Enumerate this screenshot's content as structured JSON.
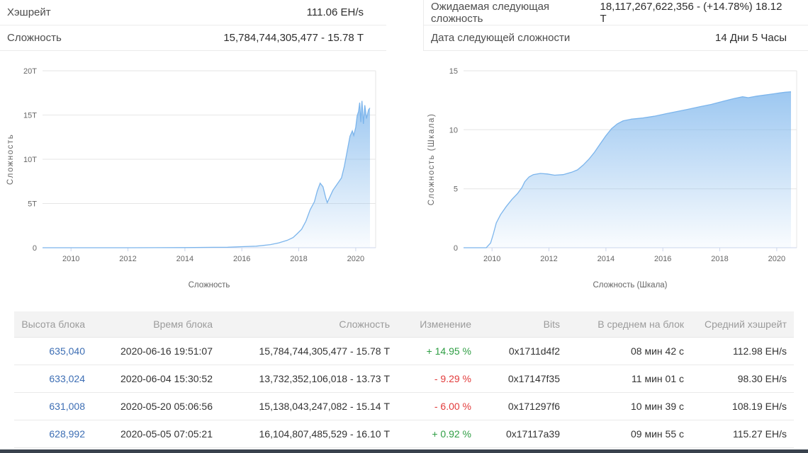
{
  "summary": {
    "left": [
      {
        "label": "Хэшрейт",
        "value": "111.06 EH/s"
      },
      {
        "label": "Сложность",
        "value": "15,784,744,305,477 - 15.78 Т"
      }
    ],
    "right": [
      {
        "label": "Ожидаемая следующая сложность",
        "value": "18,117,267,622,356 - (+14.78%) 18.12 Т"
      },
      {
        "label": "Дата следующей сложности",
        "value": "14 Дни 5 Часы"
      }
    ]
  },
  "chart_data": [
    {
      "type": "area",
      "title": "",
      "xlabel": "Сложность",
      "ylabel": "Сложность",
      "xlim": [
        2009,
        2020.7
      ],
      "ylim": [
        0,
        20
      ],
      "xticks": [
        2010,
        2012,
        2014,
        2016,
        2018,
        2020
      ],
      "xtick_labels": [
        "2010",
        "2012",
        "2014",
        "2016",
        "2018",
        "2020"
      ],
      "yticks": [
        0,
        5,
        10,
        15,
        20
      ],
      "ytick_labels": [
        "0",
        "5Т",
        "10Т",
        "15Т",
        "20Т"
      ],
      "unit": "trillions (Т)",
      "color": "#7cb5ec",
      "points": [
        [
          2009.0,
          0.001
        ],
        [
          2010,
          0.001
        ],
        [
          2011,
          0.001
        ],
        [
          2012,
          0.002
        ],
        [
          2013,
          0.005
        ],
        [
          2014,
          0.02
        ],
        [
          2015,
          0.05
        ],
        [
          2015.5,
          0.06
        ],
        [
          2016,
          0.12
        ],
        [
          2016.5,
          0.18
        ],
        [
          2017,
          0.35
        ],
        [
          2017.3,
          0.55
        ],
        [
          2017.6,
          0.85
        ],
        [
          2017.8,
          1.15
        ],
        [
          2017.95,
          1.6
        ],
        [
          2018.1,
          2.1
        ],
        [
          2018.25,
          3.0
        ],
        [
          2018.4,
          4.3
        ],
        [
          2018.55,
          5.2
        ],
        [
          2018.65,
          6.4
        ],
        [
          2018.75,
          7.3
        ],
        [
          2018.85,
          6.9
        ],
        [
          2018.95,
          5.6
        ],
        [
          2019.0,
          5.1
        ],
        [
          2019.1,
          5.8
        ],
        [
          2019.2,
          6.5
        ],
        [
          2019.35,
          7.2
        ],
        [
          2019.5,
          7.9
        ],
        [
          2019.6,
          9.2
        ],
        [
          2019.7,
          10.9
        ],
        [
          2019.8,
          12.6
        ],
        [
          2019.88,
          13.2
        ],
        [
          2019.93,
          12.7
        ],
        [
          2020.0,
          13.6
        ],
        [
          2020.05,
          14.9
        ],
        [
          2020.1,
          15.4
        ],
        [
          2020.14,
          16.4
        ],
        [
          2020.18,
          14.2
        ],
        [
          2020.22,
          16.6
        ],
        [
          2020.27,
          14.0
        ],
        [
          2020.32,
          16.1
        ],
        [
          2020.38,
          14.6
        ],
        [
          2020.45,
          15.6
        ],
        [
          2020.5,
          15.8
        ]
      ]
    },
    {
      "type": "area",
      "title": "",
      "xlabel": "Сложность (Шкала)",
      "ylabel": "Сложность (Шкала)",
      "xlim": [
        2009,
        2020.7
      ],
      "ylim": [
        0,
        15
      ],
      "xticks": [
        2010,
        2012,
        2014,
        2016,
        2018,
        2020
      ],
      "xtick_labels": [
        "2010",
        "2012",
        "2014",
        "2016",
        "2018",
        "2020"
      ],
      "yticks": [
        0,
        5,
        10,
        15
      ],
      "ytick_labels": [
        "0",
        "5",
        "10",
        "15"
      ],
      "unit": "log scale",
      "color": "#7cb5ec",
      "points": [
        [
          2009.0,
          0
        ],
        [
          2009.8,
          0
        ],
        [
          2009.95,
          0.4
        ],
        [
          2010.05,
          1.2
        ],
        [
          2010.15,
          2.1
        ],
        [
          2010.3,
          2.8
        ],
        [
          2010.5,
          3.5
        ],
        [
          2010.7,
          4.1
        ],
        [
          2010.9,
          4.6
        ],
        [
          2011.05,
          5.1
        ],
        [
          2011.15,
          5.6
        ],
        [
          2011.3,
          6.0
        ],
        [
          2011.45,
          6.2
        ],
        [
          2011.7,
          6.3
        ],
        [
          2011.95,
          6.25
        ],
        [
          2012.2,
          6.15
        ],
        [
          2012.5,
          6.2
        ],
        [
          2012.8,
          6.4
        ],
        [
          2013.0,
          6.6
        ],
        [
          2013.2,
          7.0
        ],
        [
          2013.4,
          7.5
        ],
        [
          2013.6,
          8.1
        ],
        [
          2013.8,
          8.8
        ],
        [
          2014.0,
          9.5
        ],
        [
          2014.2,
          10.1
        ],
        [
          2014.4,
          10.5
        ],
        [
          2014.6,
          10.75
        ],
        [
          2014.9,
          10.9
        ],
        [
          2015.3,
          11.0
        ],
        [
          2015.7,
          11.15
        ],
        [
          2016.1,
          11.35
        ],
        [
          2016.5,
          11.55
        ],
        [
          2016.9,
          11.75
        ],
        [
          2017.3,
          11.95
        ],
        [
          2017.7,
          12.15
        ],
        [
          2018.1,
          12.4
        ],
        [
          2018.5,
          12.65
        ],
        [
          2018.8,
          12.8
        ],
        [
          2019.0,
          12.72
        ],
        [
          2019.3,
          12.85
        ],
        [
          2019.6,
          12.95
        ],
        [
          2019.9,
          13.05
        ],
        [
          2020.1,
          13.12
        ],
        [
          2020.3,
          13.18
        ],
        [
          2020.5,
          13.22
        ]
      ]
    }
  ],
  "table": {
    "headers": [
      "Высота блока",
      "Время блока",
      "Сложность",
      "Изменение",
      "Bits",
      "В среднем на блок",
      "Средний хэшрейт"
    ],
    "rows": [
      {
        "height": "635,040",
        "time": "2020-06-16 19:51:07",
        "difficulty": "15,784,744,305,477 - 15.78 Т",
        "change": "+ 14.95 %",
        "change_dir": "up",
        "bits": "0x1711d4f2",
        "avg_block_time": "08 мин 42 с",
        "avg_hashrate": "112.98 EH/s"
      },
      {
        "height": "633,024",
        "time": "2020-06-04 15:30:52",
        "difficulty": "13,732,352,106,018 - 13.73 Т",
        "change": "- 9.29 %",
        "change_dir": "down",
        "bits": "0x17147f35",
        "avg_block_time": "11 мин 01 с",
        "avg_hashrate": "98.30 EH/s"
      },
      {
        "height": "631,008",
        "time": "2020-05-20 05:06:56",
        "difficulty": "15,138,043,247,082 - 15.14 Т",
        "change": "- 6.00 %",
        "change_dir": "down",
        "bits": "0x171297f6",
        "avg_block_time": "10 мин 39 с",
        "avg_hashrate": "108.19 EH/s"
      },
      {
        "height": "628,992",
        "time": "2020-05-05 07:05:21",
        "difficulty": "16,104,807,485,529 - 16.10 Т",
        "change": "+ 0.92 %",
        "change_dir": "up",
        "bits": "0x17117a39",
        "avg_block_time": "09 мин 55 с",
        "avg_hashrate": "115.27 EH/s"
      }
    ]
  },
  "colors": {
    "chart_area": "#7cb5ec",
    "link_blue": "#3d6eb4",
    "change_up": "#2f9e44",
    "change_down": "#e23b3b",
    "header_gray": "#f3f3f3"
  }
}
